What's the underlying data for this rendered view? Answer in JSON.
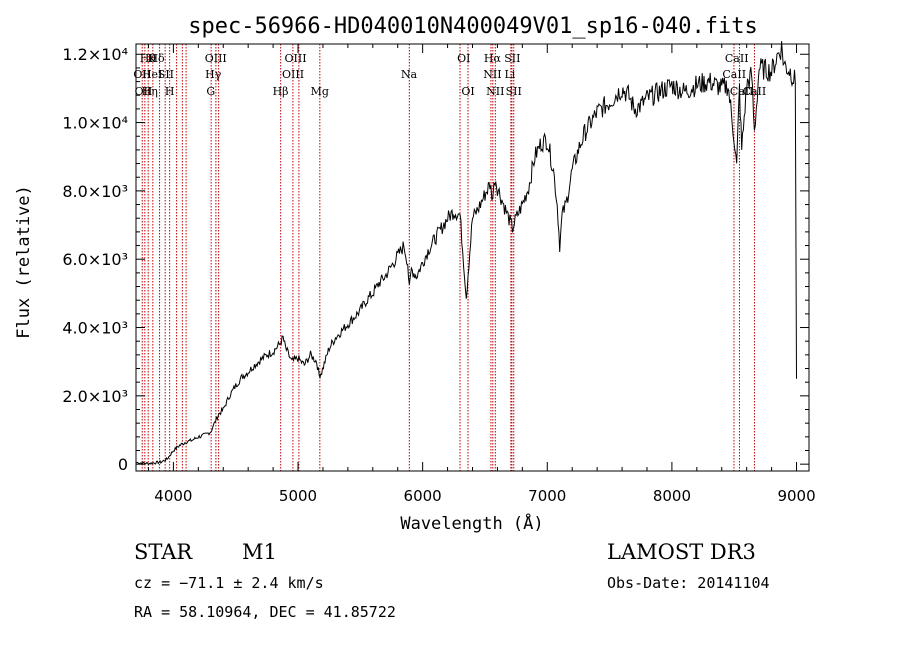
{
  "chart_data": {
    "type": "line",
    "title": "spec-56966-HD040010N400049V01_sp16-040.fits",
    "xlabel": "Wavelength (Å)",
    "ylabel": "Flux (relative)",
    "xlim": [
      3700,
      9100
    ],
    "ylim": [
      -200,
      12300
    ],
    "xticks": [
      4000,
      5000,
      6000,
      7000,
      8000,
      9000
    ],
    "yticks": [
      {
        "value": 0,
        "label": "0"
      },
      {
        "value": 2000,
        "label": "2.0×10³"
      },
      {
        "value": 4000,
        "label": "4.0×10³"
      },
      {
        "value": 6000,
        "label": "6.0×10³"
      },
      {
        "value": 8000,
        "label": "8.0×10³"
      },
      {
        "value": 10000,
        "label": "1.0×10⁴"
      },
      {
        "value": 12000,
        "label": "1.2×10⁴"
      }
    ],
    "series": [
      {
        "name": "flux",
        "x": [
          3700,
          3800,
          3900,
          3950,
          4000,
          4050,
          4100,
          4150,
          4200,
          4250,
          4300,
          4330,
          4360,
          4400,
          4450,
          4500,
          4550,
          4600,
          4650,
          4700,
          4750,
          4800,
          4850,
          4880,
          4900,
          4950,
          5000,
          5050,
          5100,
          5150,
          5170,
          5190,
          5250,
          5300,
          5350,
          5400,
          5450,
          5500,
          5550,
          5600,
          5650,
          5700,
          5750,
          5800,
          5850,
          5880,
          5893,
          5910,
          5950,
          6000,
          6050,
          6100,
          6150,
          6200,
          6250,
          6300,
          6350,
          6400,
          6450,
          6500,
          6540,
          6563,
          6580,
          6600,
          6650,
          6700,
          6720,
          6750,
          6800,
          6850,
          6900,
          6950,
          7000,
          7050,
          7080,
          7100,
          7120,
          7150,
          7200,
          7250,
          7300,
          7400,
          7500,
          7600,
          7650,
          7700,
          7750,
          7800,
          7900,
          8000,
          8100,
          8200,
          8300,
          8400,
          8450,
          8498,
          8520,
          8542,
          8560,
          8600,
          8640,
          8662,
          8700,
          8800,
          8850,
          8880,
          8900,
          8950,
          8990,
          9000
        ],
        "y": [
          50,
          20,
          60,
          150,
          400,
          550,
          650,
          700,
          800,
          850,
          950,
          1200,
          1450,
          1600,
          2000,
          2300,
          2550,
          2700,
          2900,
          3050,
          3200,
          3300,
          3500,
          3700,
          3400,
          3000,
          3100,
          2900,
          3200,
          3000,
          2600,
          2700,
          3400,
          3700,
          3900,
          4100,
          4300,
          4500,
          4800,
          5000,
          5300,
          5500,
          5800,
          6100,
          6400,
          5900,
          5100,
          5700,
          5500,
          5900,
          6300,
          6600,
          6900,
          7200,
          7400,
          7300,
          4900,
          7200,
          7500,
          7900,
          8200,
          7800,
          8400,
          8100,
          7600,
          7100,
          6900,
          7200,
          7600,
          8100,
          9000,
          9400,
          9500,
          8600,
          7600,
          6400,
          7300,
          7600,
          8600,
          9200,
          9700,
          10300,
          10600,
          11000,
          10800,
          10400,
          10500,
          10700,
          10900,
          11100,
          10900,
          11100,
          11200,
          11000,
          11100,
          9600,
          8700,
          11000,
          9200,
          11100,
          11400,
          9700,
          11600,
          11500,
          12000,
          12200,
          11700,
          11500,
          11200,
          2500
        ],
        "color": "#000000"
      }
    ],
    "lines": [
      {
        "x": 3750
      },
      {
        "x": 3771
      },
      {
        "x": 3798
      },
      {
        "x": 3835
      },
      {
        "x": 3889
      },
      {
        "x": 3934
      },
      {
        "x": 3970
      },
      {
        "x": 4026
      },
      {
        "x": 4072
      },
      {
        "x": 4102
      },
      {
        "x": 4303
      },
      {
        "x": 4341
      },
      {
        "x": 4363
      },
      {
        "x": 4861
      },
      {
        "x": 4959
      },
      {
        "x": 5007
      },
      {
        "x": 5175
      },
      {
        "x": 5893
      },
      {
        "x": 6300
      },
      {
        "x": 6364
      },
      {
        "x": 6548
      },
      {
        "x": 6563
      },
      {
        "x": 6583
      },
      {
        "x": 6708
      },
      {
        "x": 6716
      },
      {
        "x": 6731
      },
      {
        "x": 8498
      },
      {
        "x": 8542
      },
      {
        "x": 8662
      }
    ],
    "line_color": "#c00000",
    "annotations": [
      {
        "x": 3795,
        "row": 0,
        "text": "Hθ"
      },
      {
        "x": 3825,
        "row": 0,
        "text": "K"
      },
      {
        "x": 3865,
        "row": 0,
        "text": "Hδ"
      },
      {
        "x": 4340,
        "row": 0,
        "text": "OIII"
      },
      {
        "x": 4980,
        "row": 0,
        "text": "OIII"
      },
      {
        "x": 6330,
        "row": 0,
        "text": "OI"
      },
      {
        "x": 6560,
        "row": 0,
        "text": "Hα"
      },
      {
        "x": 6720,
        "row": 0,
        "text": "SII"
      },
      {
        "x": 8520,
        "row": 0,
        "text": "CaII"
      },
      {
        "x": 3750,
        "row": 1,
        "text": "OII"
      },
      {
        "x": 3830,
        "row": 1,
        "text": "HeI"
      },
      {
        "x": 3940,
        "row": 1,
        "text": "SII"
      },
      {
        "x": 4320,
        "row": 1,
        "text": "Hγ"
      },
      {
        "x": 4960,
        "row": 1,
        "text": "OIII"
      },
      {
        "x": 5890,
        "row": 1,
        "text": "Na"
      },
      {
        "x": 6560,
        "row": 1,
        "text": "NII"
      },
      {
        "x": 6700,
        "row": 1,
        "text": "Li"
      },
      {
        "x": 8500,
        "row": 1,
        "text": "CaII"
      },
      {
        "x": 3760,
        "row": 2,
        "text": "OII"
      },
      {
        "x": 3810,
        "row": 2,
        "text": "Hη"
      },
      {
        "x": 3970,
        "row": 2,
        "text": "H"
      },
      {
        "x": 4300,
        "row": 2,
        "text": "G"
      },
      {
        "x": 4860,
        "row": 2,
        "text": "Hβ"
      },
      {
        "x": 5175,
        "row": 2,
        "text": "Mg"
      },
      {
        "x": 6364,
        "row": 2,
        "text": "OI"
      },
      {
        "x": 6583,
        "row": 2,
        "text": "NII"
      },
      {
        "x": 6731,
        "row": 2,
        "text": "SII"
      },
      {
        "x": 8560,
        "row": 2,
        "text": "CaII"
      },
      {
        "x": 8662,
        "row": 2,
        "text": "CaII"
      }
    ]
  },
  "info": {
    "object_class": "STAR",
    "subclass": "M1",
    "survey": "LAMOST DR3",
    "redshift_line": "cz = −71.1 ± 2.4 km/s",
    "obs_date_line": "Obs-Date: 20141104",
    "coords_line": "RA =  58.10964, DEC =  41.85722"
  }
}
